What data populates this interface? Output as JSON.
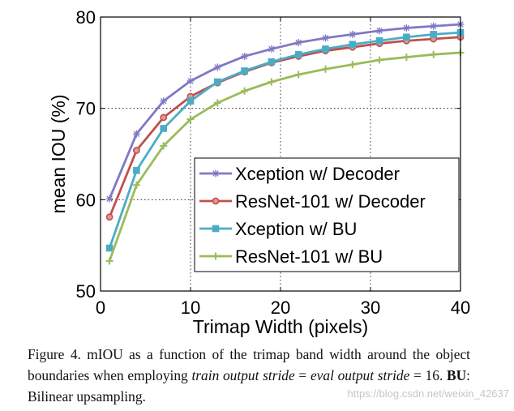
{
  "chart_data": {
    "type": "line",
    "xlabel": "Trimap Width (pixels)",
    "ylabel": "mean IOU (%)",
    "xlim": [
      0,
      40
    ],
    "ylim": [
      50,
      80
    ],
    "xticks": [
      0,
      10,
      20,
      30,
      40
    ],
    "yticks": [
      50,
      60,
      70,
      80
    ],
    "grid": "dotted",
    "legend_position": "lower-right",
    "x": [
      1,
      4,
      7,
      10,
      13,
      16,
      19,
      22,
      25,
      28,
      31,
      34,
      37,
      40
    ],
    "series": [
      {
        "name": "Xception w/ Decoder",
        "color": "#8078c4",
        "marker": "star",
        "values": [
          60.1,
          67.2,
          70.8,
          73.0,
          74.5,
          75.7,
          76.5,
          77.2,
          77.7,
          78.1,
          78.5,
          78.8,
          79.0,
          79.2
        ]
      },
      {
        "name": "ResNet-101 w/ Decoder",
        "color": "#c0504d",
        "marker": "circle",
        "values": [
          58.1,
          65.4,
          69.0,
          71.3,
          72.8,
          74.0,
          75.0,
          75.7,
          76.3,
          76.7,
          77.1,
          77.4,
          77.6,
          77.8
        ]
      },
      {
        "name": "Xception w/ BU",
        "color": "#4bacc6",
        "marker": "square",
        "values": [
          54.7,
          63.2,
          67.8,
          70.8,
          72.9,
          74.1,
          75.1,
          75.9,
          76.5,
          77.0,
          77.4,
          77.8,
          78.1,
          78.3
        ]
      },
      {
        "name": "ResNet-101 w/ BU",
        "color": "#9bbb59",
        "marker": "plus",
        "values": [
          53.3,
          61.6,
          65.9,
          68.8,
          70.6,
          71.9,
          72.9,
          73.7,
          74.3,
          74.8,
          75.3,
          75.6,
          75.9,
          76.1
        ]
      }
    ]
  },
  "caption": {
    "part1": "Figure 4. mIOU as a function of the trimap band width around the object boundaries when employing ",
    "italic1": "train output stride",
    "part2": " = ",
    "italic2": "eval output stride",
    "part3": " = 16. ",
    "bold1": "BU",
    "part4": ": Bilinear upsampling."
  },
  "watermark": "https://blog.csdn.net/weixin_42637"
}
